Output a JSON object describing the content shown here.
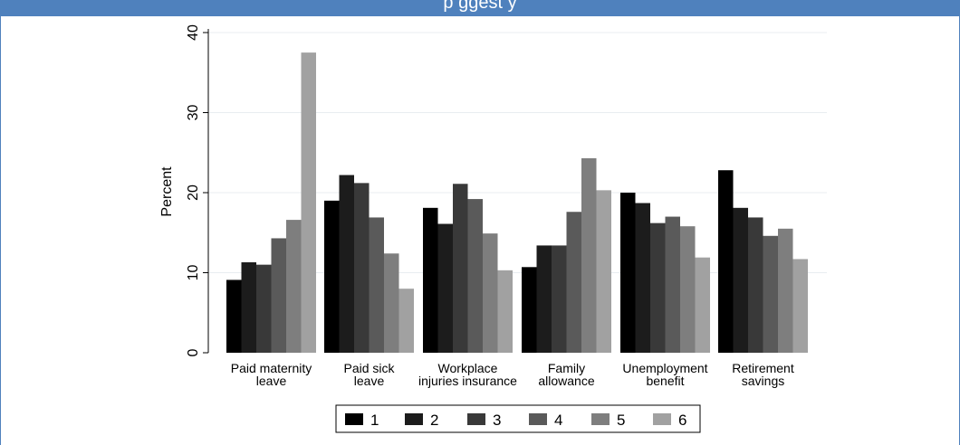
{
  "header": {
    "title_fragment": "p                                      ggest        y"
  },
  "chart_data": {
    "type": "bar",
    "ylabel": "Percent",
    "ylim": [
      0,
      40
    ],
    "yticks": [
      0,
      10,
      20,
      30,
      40
    ],
    "grid": true,
    "legend_position": "bottom",
    "categories": [
      [
        "Paid maternity",
        "leave"
      ],
      [
        "Paid sick",
        "leave"
      ],
      [
        "Workplace",
        "injuries insurance"
      ],
      [
        "Family",
        "allowance"
      ],
      [
        "Unemployment",
        "benefit"
      ],
      [
        "Retirement",
        "savings"
      ]
    ],
    "series": [
      {
        "name": "1",
        "color": "#000000",
        "values": [
          9.1,
          19.0,
          18.1,
          10.7,
          20.0,
          22.8
        ]
      },
      {
        "name": "2",
        "color": "#1c1c1c",
        "values": [
          11.3,
          22.2,
          16.1,
          13.4,
          18.7,
          18.1
        ]
      },
      {
        "name": "3",
        "color": "#393939",
        "values": [
          11.0,
          21.2,
          21.1,
          13.4,
          16.2,
          16.9
        ]
      },
      {
        "name": "4",
        "color": "#5a5a5a",
        "values": [
          14.3,
          16.9,
          19.2,
          17.6,
          17.0,
          14.6
        ]
      },
      {
        "name": "5",
        "color": "#7e7e7e",
        "values": [
          16.6,
          12.4,
          14.9,
          24.3,
          15.8,
          15.5
        ]
      },
      {
        "name": "6",
        "color": "#a1a1a1",
        "values": [
          37.5,
          8.0,
          10.3,
          20.3,
          11.9,
          11.7
        ]
      }
    ]
  }
}
